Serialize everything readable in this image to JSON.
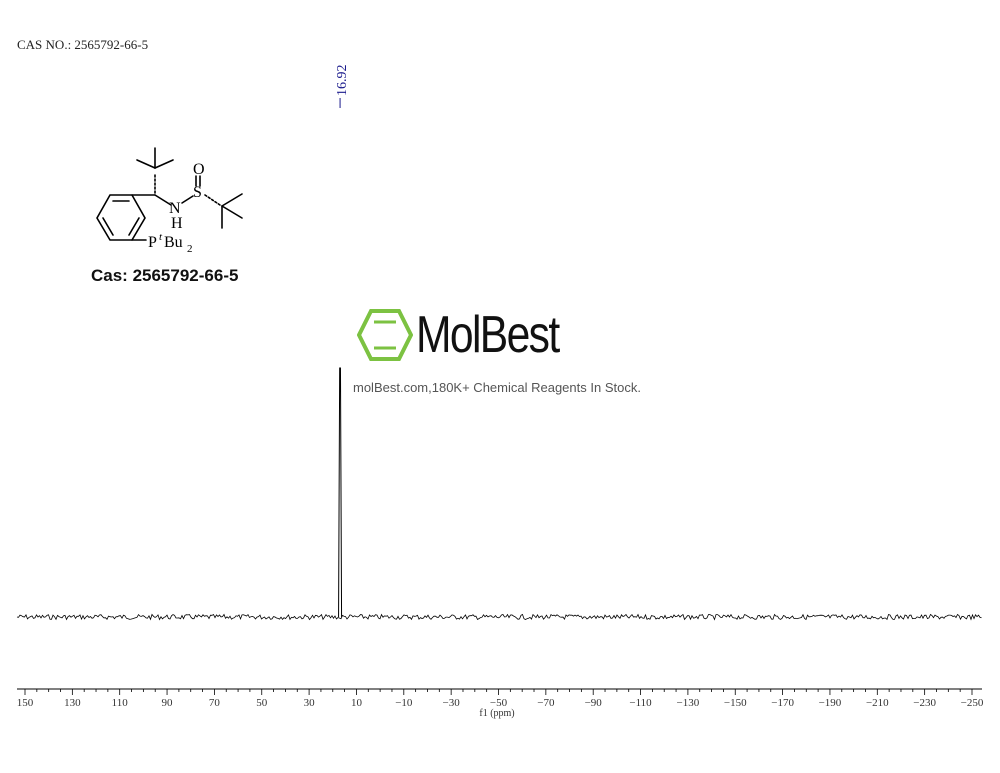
{
  "header": {
    "cas_text": "CAS NO.: 2565792-66-5"
  },
  "structure": {
    "caption": "Cas: 2565792-66-5",
    "atom_labels": {
      "oxygen": "O",
      "sulfur": "S",
      "nitrogen": "N",
      "hydrogen": "H",
      "phosphorus": "P",
      "tert_prefix": "t",
      "butyl": "Bu",
      "subscript": "2"
    }
  },
  "logo": {
    "text": "MolBest",
    "tagline": "molBest.com,180K+ Chemical Reagents In Stock.",
    "color": "#7cc242"
  },
  "chart_data": {
    "type": "line",
    "xlabel": "f1 (ppm)",
    "xlim": [
      150,
      -250
    ],
    "xaxis_reversed": true,
    "x_ticks": [
      150,
      130,
      110,
      90,
      70,
      50,
      30,
      10,
      -10,
      -30,
      -50,
      -70,
      -90,
      -110,
      -130,
      -150,
      -170,
      -190,
      -210,
      -230,
      -250
    ],
    "x_tick_labels": [
      "150",
      "130",
      "110",
      "90",
      "70",
      "50",
      "30",
      "10",
      "−10",
      "−30",
      "−50",
      "−70",
      "−90",
      "−110",
      "−130",
      "−150",
      "−170",
      "−190",
      "−210",
      "−230",
      "−250"
    ],
    "peaks": [
      {
        "ppm": 16.92,
        "label": "16.92",
        "relative_intensity": 1.0
      }
    ],
    "peak_label_color": "#1a1a8c",
    "line_color": "#000000"
  }
}
